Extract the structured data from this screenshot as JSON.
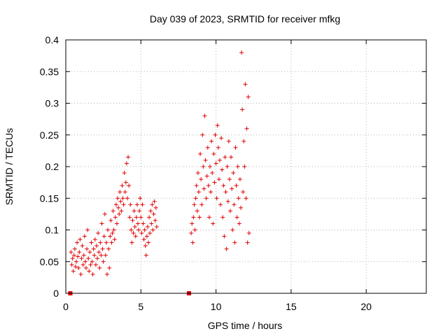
{
  "chart_data": {
    "type": "scatter",
    "title": "Day 039 of 2023, SRMTID for receiver mfkg",
    "xlabel": "GPS time / hours",
    "ylabel": "SRMTID / TECUs",
    "xlim": [
      0,
      24
    ],
    "ylim": [
      0,
      0.4
    ],
    "xticks": [
      0,
      5,
      10,
      15,
      20
    ],
    "xtick_labels": [
      "0",
      "5",
      "10",
      "15",
      "20"
    ],
    "yticks": [
      0,
      0.05,
      0.1,
      0.15,
      0.2,
      0.25,
      0.3,
      0.35,
      0.4
    ],
    "ytick_labels": [
      "0",
      "0.05",
      "0.1",
      "0.15",
      "0.2",
      "0.25",
      "0.3",
      "0.35",
      "0.4"
    ],
    "grid": true,
    "marker": "+",
    "series_color": "#e00000",
    "baseline_markers": [
      {
        "x": 0.3,
        "y": 0
      },
      {
        "x": 8.2,
        "y": 0
      }
    ],
    "series": [
      {
        "name": "SRMTID",
        "points": [
          [
            0.35,
            0.065
          ],
          [
            0.4,
            0.045
          ],
          [
            0.45,
            0.055
          ],
          [
            0.5,
            0.035
          ],
          [
            0.55,
            0.06
          ],
          [
            0.6,
            0.07
          ],
          [
            0.65,
            0.042
          ],
          [
            0.7,
            0.05
          ],
          [
            0.75,
            0.08
          ],
          [
            0.8,
            0.058
          ],
          [
            0.85,
            0.04
          ],
          [
            0.9,
            0.065
          ],
          [
            0.95,
            0.085
          ],
          [
            1.0,
            0.03
          ],
          [
            1.05,
            0.055
          ],
          [
            1.1,
            0.075
          ],
          [
            1.15,
            0.045
          ],
          [
            1.2,
            0.06
          ],
          [
            1.25,
            0.09
          ],
          [
            1.3,
            0.05
          ],
          [
            1.35,
            0.04
          ],
          [
            1.4,
            0.07
          ],
          [
            1.45,
            0.1
          ],
          [
            1.5,
            0.055
          ],
          [
            1.55,
            0.035
          ],
          [
            1.6,
            0.065
          ],
          [
            1.65,
            0.045
          ],
          [
            1.7,
            0.08
          ],
          [
            1.75,
            0.05
          ],
          [
            1.8,
            0.03
          ],
          [
            1.85,
            0.07
          ],
          [
            1.9,
            0.06
          ],
          [
            1.95,
            0.085
          ],
          [
            2.0,
            0.045
          ],
          [
            2.05,
            0.075
          ],
          [
            2.1,
            0.055
          ],
          [
            2.15,
            0.095
          ],
          [
            2.2,
            0.065
          ],
          [
            2.25,
            0.04
          ],
          [
            2.3,
            0.08
          ],
          [
            2.35,
            0.06
          ],
          [
            2.4,
            0.11
          ],
          [
            2.45,
            0.07
          ],
          [
            2.5,
            0.05
          ],
          [
            2.55,
            0.09
          ],
          [
            2.6,
            0.125
          ],
          [
            2.65,
            0.06
          ],
          [
            2.7,
            0.08
          ],
          [
            2.75,
            0.03
          ],
          [
            2.8,
            0.1
          ],
          [
            2.85,
            0.07
          ],
          [
            2.9,
            0.04
          ],
          [
            2.95,
            0.09
          ],
          [
            3.0,
            0.115
          ],
          [
            3.05,
            0.08
          ],
          [
            3.1,
            0.095
          ],
          [
            3.15,
            0.13
          ],
          [
            3.2,
            0.1
          ],
          [
            3.25,
            0.085
          ],
          [
            3.3,
            0.12
          ],
          [
            3.35,
            0.14
          ],
          [
            3.4,
            0.11
          ],
          [
            3.45,
            0.15
          ],
          [
            3.5,
            0.135
          ],
          [
            3.55,
            0.125
          ],
          [
            3.6,
            0.16
          ],
          [
            3.65,
            0.145
          ],
          [
            3.7,
            0.13
          ],
          [
            3.75,
            0.17
          ],
          [
            3.8,
            0.15
          ],
          [
            3.85,
            0.14
          ],
          [
            3.9,
            0.19
          ],
          [
            3.95,
            0.16
          ],
          [
            4.0,
            0.175
          ],
          [
            4.05,
            0.205
          ],
          [
            4.1,
            0.15
          ],
          [
            4.15,
            0.215
          ],
          [
            4.2,
            0.17
          ],
          [
            4.25,
            0.12
          ],
          [
            4.3,
            0.14
          ],
          [
            4.35,
            0.1
          ],
          [
            4.4,
            0.08
          ],
          [
            4.45,
            0.115
          ],
          [
            4.5,
            0.095
          ],
          [
            4.55,
            0.13
          ],
          [
            4.6,
            0.105
          ],
          [
            4.65,
            0.09
          ],
          [
            4.7,
            0.12
          ],
          [
            4.75,
            0.14
          ],
          [
            4.8,
            0.11
          ],
          [
            4.85,
            0.1
          ],
          [
            4.9,
            0.13
          ],
          [
            4.95,
            0.15
          ],
          [
            5.0,
            0.12
          ],
          [
            5.05,
            0.095
          ],
          [
            5.1,
            0.14
          ],
          [
            5.15,
            0.11
          ],
          [
            5.2,
            0.085
          ],
          [
            5.25,
            0.1
          ],
          [
            5.3,
            0.075
          ],
          [
            5.35,
            0.06
          ],
          [
            5.4,
            0.09
          ],
          [
            5.45,
            0.105
          ],
          [
            5.5,
            0.08
          ],
          [
            5.55,
            0.12
          ],
          [
            5.6,
            0.095
          ],
          [
            5.65,
            0.13
          ],
          [
            5.7,
            0.11
          ],
          [
            5.75,
            0.14
          ],
          [
            5.8,
            0.1
          ],
          [
            5.85,
            0.125
          ],
          [
            5.9,
            0.145
          ],
          [
            5.95,
            0.115
          ],
          [
            6.0,
            0.135
          ],
          [
            6.05,
            0.105
          ],
          [
            8.35,
            0.095
          ],
          [
            8.4,
            0.11
          ],
          [
            8.45,
            0.08
          ],
          [
            8.5,
            0.12
          ],
          [
            8.55,
            0.14
          ],
          [
            8.6,
            0.1
          ],
          [
            8.65,
            0.15
          ],
          [
            8.7,
            0.17
          ],
          [
            8.75,
            0.13
          ],
          [
            8.8,
            0.19
          ],
          [
            8.85,
            0.16
          ],
          [
            8.9,
            0.12
          ],
          [
            8.95,
            0.22
          ],
          [
            9.0,
            0.18
          ],
          [
            9.05,
            0.14
          ],
          [
            9.1,
            0.25
          ],
          [
            9.15,
            0.2
          ],
          [
            9.2,
            0.165
          ],
          [
            9.25,
            0.28
          ],
          [
            9.3,
            0.21
          ],
          [
            9.35,
            0.15
          ],
          [
            9.4,
            0.185
          ],
          [
            9.45,
            0.23
          ],
          [
            9.5,
            0.17
          ],
          [
            9.55,
            0.12
          ],
          [
            9.6,
            0.2
          ],
          [
            9.65,
            0.16
          ],
          [
            9.7,
            0.24
          ],
          [
            9.75,
            0.19
          ],
          [
            9.8,
            0.11
          ],
          [
            9.85,
            0.22
          ],
          [
            9.9,
            0.175
          ],
          [
            9.95,
            0.25
          ],
          [
            10.0,
            0.205
          ],
          [
            10.05,
            0.15
          ],
          [
            10.1,
            0.265
          ],
          [
            10.15,
            0.23
          ],
          [
            10.2,
            0.18
          ],
          [
            10.25,
            0.21
          ],
          [
            10.3,
            0.14
          ],
          [
            10.35,
            0.245
          ],
          [
            10.4,
            0.195
          ],
          [
            10.45,
            0.12
          ],
          [
            10.5,
            0.17
          ],
          [
            10.55,
            0.09
          ],
          [
            10.6,
            0.215
          ],
          [
            10.65,
            0.16
          ],
          [
            10.7,
            0.07
          ],
          [
            10.75,
            0.2
          ],
          [
            10.8,
            0.145
          ],
          [
            10.85,
            0.24
          ],
          [
            10.9,
            0.18
          ],
          [
            10.95,
            0.13
          ],
          [
            11.0,
            0.215
          ],
          [
            11.05,
            0.165
          ],
          [
            11.1,
            0.1
          ],
          [
            11.15,
            0.19
          ],
          [
            11.2,
            0.14
          ],
          [
            11.25,
            0.08
          ],
          [
            11.3,
            0.23
          ],
          [
            11.35,
            0.17
          ],
          [
            11.4,
            0.12
          ],
          [
            11.45,
            0.2
          ],
          [
            11.5,
            0.15
          ],
          [
            11.55,
            0.11
          ],
          [
            11.6,
            0.18
          ],
          [
            11.65,
            0.135
          ],
          [
            11.7,
            0.38
          ],
          [
            11.75,
            0.29
          ],
          [
            11.8,
            0.16
          ],
          [
            11.85,
            0.24
          ],
          [
            11.9,
            0.2
          ],
          [
            11.95,
            0.33
          ],
          [
            12.0,
            0.15
          ],
          [
            12.05,
            0.26
          ],
          [
            12.1,
            0.08
          ],
          [
            12.15,
            0.31
          ],
          [
            12.2,
            0.095
          ]
        ]
      }
    ]
  }
}
